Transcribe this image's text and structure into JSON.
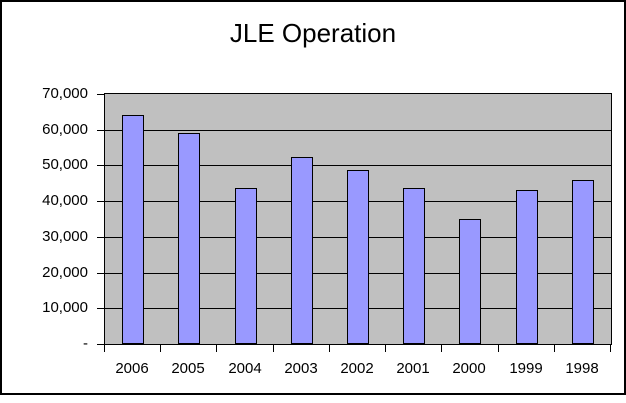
{
  "chart_data": {
    "type": "bar",
    "title": "JLE Operation",
    "categories": [
      "2006",
      "2005",
      "2004",
      "2003",
      "2002",
      "2001",
      "2000",
      "1999",
      "1998"
    ],
    "values": [
      64000,
      59000,
      43600,
      52300,
      48700,
      43600,
      35100,
      43100,
      46000
    ],
    "xlabel": "",
    "ylabel": "",
    "ylim": [
      0,
      70000
    ],
    "ytick_interval": 10000,
    "ytick_labels_top_to_bottom": [
      "70,000",
      "60,000",
      "50,000",
      "40,000",
      "30,000",
      "20,000",
      "10,000",
      "-"
    ],
    "grid": "horizontal",
    "legend_position": "none",
    "colors": {
      "bar_fill": "#9999ff",
      "bar_border": "#000000",
      "plot_background": "#c0c0c0",
      "chart_background": "#ffffff",
      "gridline": "#000000",
      "text": "#000000"
    }
  }
}
